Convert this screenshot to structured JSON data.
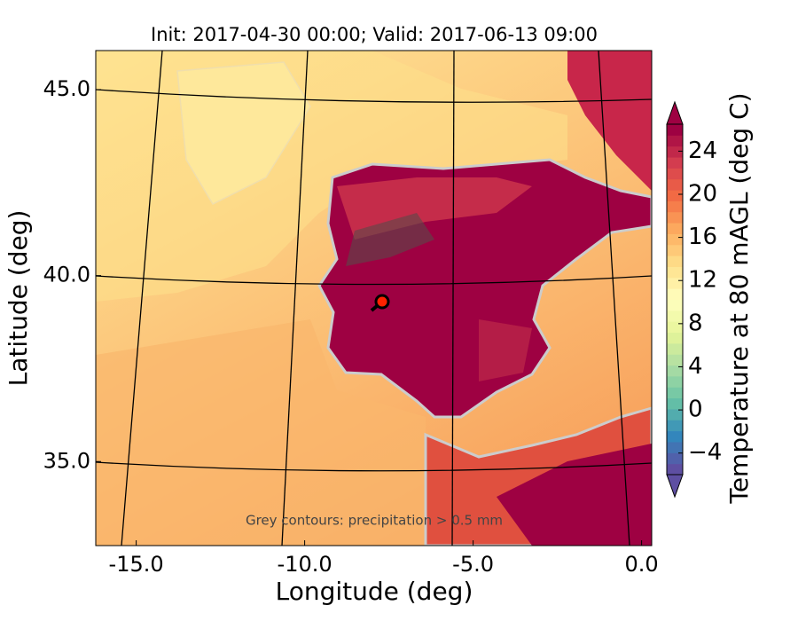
{
  "chart_data": {
    "type": "map",
    "title": "Init: 2017-04-30 00:00; Valid: 2017-06-13 09:00",
    "x_label": "Longitude (deg)",
    "y_label": "Latitude (deg)",
    "annotation": "Grey contours: precipitation > 0.5 mm",
    "xlim": [
      -16.2,
      0.3
    ],
    "ylim": [
      32.74,
      46.05
    ],
    "xticks": [
      {
        "value": -15,
        "label": "-15.0"
      },
      {
        "value": -10,
        "label": "-10.0"
      },
      {
        "value": -5,
        "label": "-5.0"
      },
      {
        "value": 0,
        "label": "0.0"
      }
    ],
    "yticks": [
      {
        "value": 35,
        "label": "35.0"
      },
      {
        "value": 40,
        "label": "40.0"
      },
      {
        "value": 45,
        "label": "45.0"
      }
    ],
    "marker": {
      "lon": -7.7,
      "lat": 39.3,
      "color": "#ff2200"
    },
    "colorbar": {
      "label": "Temperature at 80 mAGL (deg C)",
      "lim": [
        -6,
        26.5
      ],
      "ticks": [
        {
          "value": -4,
          "label": "−4"
        },
        0,
        4,
        8,
        12,
        16,
        20,
        24
      ],
      "colors": [
        "#5e4fa2",
        "#3288bd",
        "#66c2a5",
        "#abdda4",
        "#e6f598",
        "#ffffbf",
        "#fee08b",
        "#fdae61",
        "#f46d43",
        "#d53e4f",
        "#9e0142"
      ]
    }
  }
}
